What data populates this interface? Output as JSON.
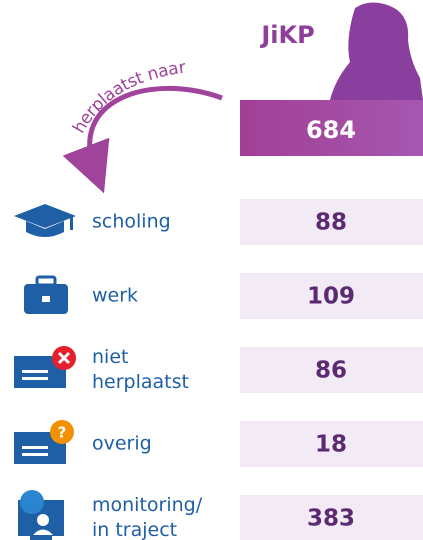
{
  "header": {
    "title": "JiKP",
    "total": 684,
    "arrow_label": "herplaatst naar"
  },
  "rows": [
    {
      "label": [
        "scholing"
      ],
      "value": 88
    },
    {
      "label": [
        "werk"
      ],
      "value": 109
    },
    {
      "label": [
        "niet",
        "herplaatst"
      ],
      "value": 86
    },
    {
      "label": [
        "overig"
      ],
      "value": 18
    },
    {
      "label": [
        "monitoring/",
        "in traject"
      ],
      "value": 383
    }
  ]
}
